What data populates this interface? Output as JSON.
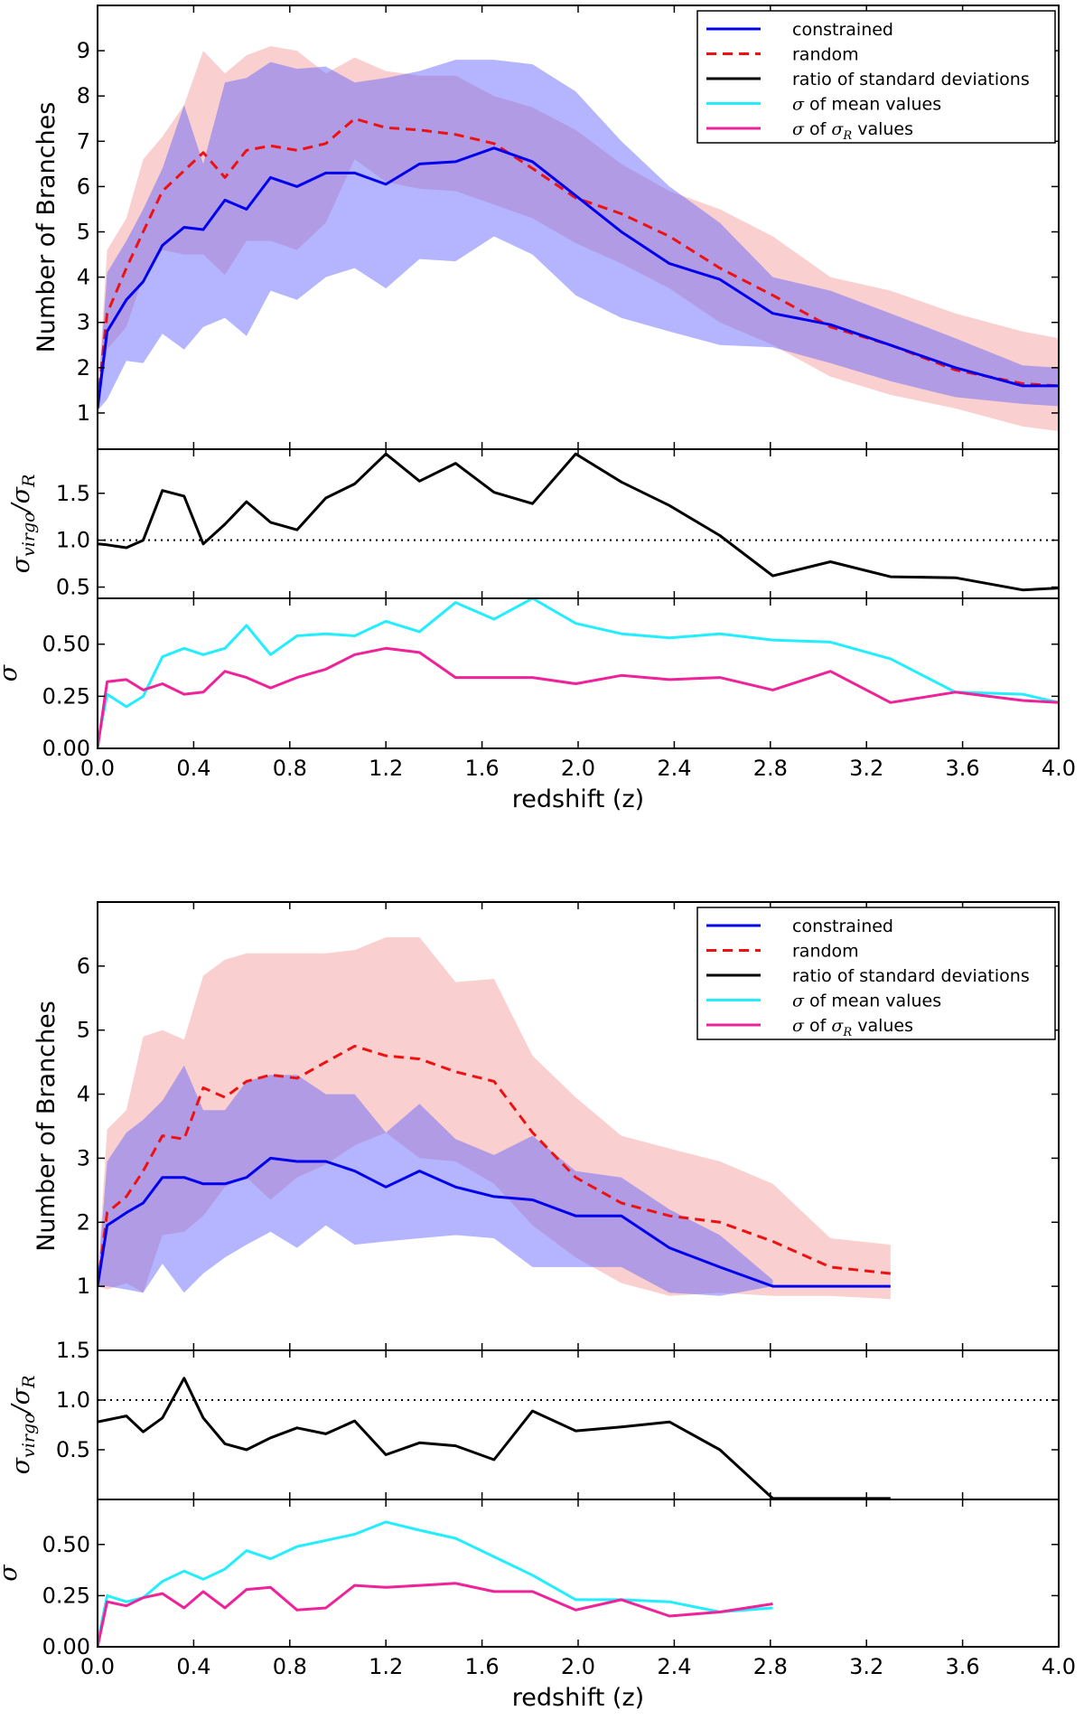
{
  "chart_data": [
    {
      "type": "line",
      "title": "",
      "xlabel": "redshift (z)",
      "ylabel": "Number of Branches",
      "xlim": [
        0.0,
        4.0
      ],
      "ylim": [
        0.2,
        10.0
      ],
      "xticks": [
        "0.0",
        "0.4",
        "0.8",
        "1.2",
        "1.6",
        "2.0",
        "2.4",
        "2.8",
        "3.2",
        "3.6",
        "4.0"
      ],
      "yticks": [
        "1",
        "2",
        "3",
        "4",
        "5",
        "6",
        "7",
        "8",
        "9"
      ],
      "legend": [
        "constrained",
        "random",
        "ratio of standard deviations",
        "σ of mean values",
        "σ of σR values"
      ],
      "legend_position": "top-right",
      "x": [
        0.0,
        0.04,
        0.12,
        0.19,
        0.27,
        0.36,
        0.44,
        0.53,
        0.62,
        0.72,
        0.83,
        0.95,
        1.07,
        1.2,
        1.34,
        1.49,
        1.65,
        1.81,
        1.99,
        2.18,
        2.38,
        2.59,
        2.81,
        3.05,
        3.3,
        3.57,
        3.85,
        4.0
      ],
      "series": [
        {
          "name": "constrained",
          "color": "#0000ee",
          "style": "solid",
          "values": [
            1.1,
            2.8,
            3.5,
            3.9,
            4.7,
            5.1,
            5.05,
            5.7,
            5.5,
            6.2,
            6.0,
            6.3,
            6.3,
            6.05,
            6.5,
            6.55,
            6.85,
            6.55,
            5.8,
            5.0,
            4.3,
            3.95,
            3.2,
            2.95,
            2.5,
            2.0,
            1.6,
            1.6
          ],
          "band_lower": [
            1.05,
            1.3,
            2.15,
            2.1,
            2.75,
            2.4,
            2.9,
            3.1,
            2.7,
            3.7,
            3.5,
            4.0,
            4.2,
            3.75,
            4.4,
            4.35,
            4.9,
            4.5,
            3.6,
            3.1,
            2.8,
            2.5,
            2.45,
            2.1,
            1.7,
            1.35,
            1.2,
            1.15
          ],
          "band_upper": [
            1.2,
            4.1,
            4.8,
            5.5,
            6.4,
            7.8,
            6.5,
            8.3,
            8.4,
            8.75,
            8.6,
            8.65,
            8.3,
            8.4,
            8.55,
            8.8,
            8.8,
            8.7,
            8.1,
            7.0,
            6.0,
            5.2,
            4.0,
            3.7,
            3.2,
            2.65,
            2.05,
            2.0
          ]
        },
        {
          "name": "random",
          "color": "#ee1111",
          "style": "dashed",
          "values": [
            1.2,
            3.2,
            4.2,
            5.0,
            5.9,
            6.35,
            6.75,
            6.2,
            6.8,
            6.9,
            6.8,
            6.95,
            7.5,
            7.3,
            7.25,
            7.15,
            6.95,
            6.4,
            5.75,
            5.4,
            4.9,
            4.2,
            3.6,
            2.9,
            2.5,
            1.95,
            1.65,
            1.6
          ],
          "band_lower": [
            1.1,
            2.4,
            2.9,
            4.0,
            4.6,
            4.5,
            4.5,
            4.05,
            4.8,
            4.8,
            4.6,
            5.2,
            6.6,
            6.1,
            5.95,
            5.9,
            5.6,
            5.3,
            4.75,
            4.3,
            3.75,
            3.0,
            2.5,
            1.8,
            1.4,
            1.1,
            0.7,
            0.6
          ],
          "band_upper": [
            1.3,
            4.6,
            5.3,
            6.6,
            7.1,
            7.8,
            9.0,
            8.5,
            8.9,
            9.1,
            9.0,
            8.5,
            8.85,
            8.55,
            8.45,
            8.45,
            8.0,
            7.75,
            7.25,
            6.5,
            5.9,
            5.5,
            4.9,
            4.0,
            3.7,
            3.2,
            2.8,
            2.65
          ]
        }
      ]
    },
    {
      "type": "line",
      "xlabel": "",
      "ylabel": "σvirgo/σR",
      "xlim": [
        0.0,
        4.0
      ],
      "ylim": [
        0.38,
        1.97
      ],
      "yticks": [
        "0.5",
        "1.0",
        "1.5"
      ],
      "reference_line": 1.0,
      "x": [
        0.0,
        0.04,
        0.12,
        0.19,
        0.27,
        0.36,
        0.44,
        0.53,
        0.62,
        0.72,
        0.83,
        0.95,
        1.07,
        1.2,
        1.34,
        1.49,
        1.65,
        1.81,
        1.99,
        2.18,
        2.38,
        2.59,
        2.81,
        3.05,
        3.3,
        3.57,
        3.85,
        4.0
      ],
      "series": [
        {
          "name": "ratio of standard deviations",
          "color": "#000000",
          "values": [
            0.96,
            0.95,
            0.92,
            1.0,
            1.53,
            1.47,
            0.96,
            1.17,
            1.41,
            1.19,
            1.11,
            1.45,
            1.6,
            1.92,
            1.63,
            1.82,
            1.51,
            1.39,
            1.92,
            1.62,
            1.37,
            1.05,
            0.62,
            0.77,
            0.61,
            0.6,
            0.47,
            0.49
          ]
        }
      ]
    },
    {
      "type": "line",
      "xlabel": "redshift (z)",
      "ylabel": "σ",
      "xlim": [
        0.0,
        4.0
      ],
      "ylim": [
        0.0,
        0.72
      ],
      "yticks": [
        "0.00",
        "0.25",
        "0.50"
      ],
      "x": [
        0.0,
        0.04,
        0.12,
        0.19,
        0.27,
        0.36,
        0.44,
        0.53,
        0.62,
        0.72,
        0.83,
        0.95,
        1.07,
        1.2,
        1.34,
        1.49,
        1.65,
        1.81,
        1.99,
        2.18,
        2.38,
        2.59,
        2.81,
        3.05,
        3.3,
        3.57,
        3.85,
        4.0
      ],
      "series": [
        {
          "name": "σ of mean values",
          "color": "#22eeff",
          "values": [
            0.02,
            0.26,
            0.2,
            0.25,
            0.44,
            0.48,
            0.45,
            0.48,
            0.59,
            0.45,
            0.54,
            0.55,
            0.54,
            0.61,
            0.56,
            0.7,
            0.62,
            0.72,
            0.6,
            0.55,
            0.53,
            0.55,
            0.52,
            0.51,
            0.43,
            0.27,
            0.26,
            0.22
          ]
        },
        {
          "name": "σ of σR values",
          "color": "#ee2299",
          "values": [
            0.0,
            0.32,
            0.33,
            0.28,
            0.31,
            0.26,
            0.27,
            0.37,
            0.34,
            0.29,
            0.34,
            0.38,
            0.45,
            0.48,
            0.46,
            0.34,
            0.34,
            0.34,
            0.31,
            0.35,
            0.33,
            0.34,
            0.28,
            0.37,
            0.22,
            0.27,
            0.23,
            0.22
          ]
        }
      ]
    },
    {
      "type": "line",
      "title": "",
      "xlabel": "redshift (z)",
      "ylabel": "Number of Branches",
      "xlim": [
        0.0,
        4.0
      ],
      "ylim": [
        0.0,
        7.0
      ],
      "yticks": [
        "1",
        "2",
        "3",
        "4",
        "5",
        "6"
      ],
      "legend": [
        "constrained",
        "random",
        "ratio of standard deviations",
        "σ of mean values",
        "σ of σR values"
      ],
      "legend_position": "top-right",
      "x": [
        0.0,
        0.04,
        0.12,
        0.19,
        0.27,
        0.36,
        0.44,
        0.53,
        0.62,
        0.72,
        0.83,
        0.95,
        1.07,
        1.2,
        1.34,
        1.49,
        1.65,
        1.81,
        1.99,
        2.18,
        2.38,
        2.59,
        2.81,
        3.05,
        3.3
      ],
      "series": [
        {
          "name": "constrained",
          "color": "#0000ee",
          "style": "solid",
          "values": [
            1.0,
            1.95,
            2.15,
            2.3,
            2.7,
            2.7,
            2.6,
            2.6,
            2.7,
            3.0,
            2.95,
            2.95,
            2.8,
            2.55,
            2.8,
            2.55,
            2.4,
            2.35,
            2.1,
            2.1,
            1.6,
            1.3,
            1.0,
            1.0,
            1.0
          ],
          "band_lower": [
            1.0,
            1.0,
            0.95,
            0.9,
            1.35,
            0.9,
            1.2,
            1.45,
            1.65,
            1.85,
            1.6,
            1.95,
            1.65,
            1.7,
            1.75,
            1.8,
            1.75,
            1.3,
            1.3,
            1.3,
            0.9,
            0.85,
            1.0,
            null,
            null
          ],
          "band_upper": [
            1.1,
            2.95,
            3.4,
            3.6,
            3.9,
            4.45,
            3.75,
            3.75,
            4.2,
            4.3,
            4.3,
            4.0,
            4.0,
            3.4,
            3.85,
            3.3,
            3.05,
            3.35,
            2.8,
            2.7,
            2.2,
            1.8,
            1.1,
            null,
            null
          ]
        },
        {
          "name": "random",
          "color": "#ee1111",
          "style": "dashed",
          "values": [
            1.0,
            2.15,
            2.4,
            2.8,
            3.35,
            3.3,
            4.1,
            3.95,
            4.2,
            4.3,
            4.25,
            4.5,
            4.75,
            4.6,
            4.55,
            4.35,
            4.2,
            3.4,
            2.7,
            2.3,
            2.1,
            2.0,
            1.7,
            1.3,
            1.2
          ],
          "band_lower": [
            1.0,
            0.95,
            1.05,
            0.9,
            1.8,
            1.85,
            2.1,
            2.55,
            2.7,
            2.35,
            2.7,
            2.9,
            3.2,
            3.4,
            3.0,
            2.95,
            2.6,
            1.95,
            1.45,
            1.05,
            0.85,
            0.9,
            0.85,
            0.85,
            0.8
          ],
          "band_upper": [
            1.1,
            3.45,
            3.75,
            4.9,
            5.0,
            4.85,
            5.85,
            6.1,
            6.2,
            6.2,
            6.2,
            6.2,
            6.25,
            6.45,
            6.45,
            5.75,
            5.8,
            4.6,
            3.95,
            3.35,
            3.15,
            2.95,
            2.6,
            1.75,
            1.65
          ]
        }
      ]
    },
    {
      "type": "line",
      "xlabel": "",
      "ylabel": "σvirgo/σR",
      "xlim": [
        0.0,
        4.0
      ],
      "ylim": [
        0.0,
        1.5
      ],
      "yticks": [
        "0.5",
        "1.0",
        "1.5"
      ],
      "reference_line": 1.0,
      "x": [
        0.0,
        0.04,
        0.12,
        0.19,
        0.27,
        0.36,
        0.44,
        0.53,
        0.62,
        0.72,
        0.83,
        0.95,
        1.07,
        1.2,
        1.34,
        1.49,
        1.65,
        1.81,
        1.99,
        2.18,
        2.38,
        2.59,
        2.81,
        3.05,
        3.3
      ],
      "series": [
        {
          "name": "ratio of standard deviations",
          "color": "#000000",
          "values": [
            0.78,
            0.8,
            0.84,
            0.68,
            0.82,
            1.22,
            0.82,
            0.56,
            0.5,
            0.62,
            0.72,
            0.66,
            0.79,
            0.45,
            0.57,
            0.54,
            0.4,
            0.89,
            0.69,
            0.73,
            0.78,
            0.5,
            0.01,
            0.01,
            0.01
          ]
        }
      ]
    },
    {
      "type": "line",
      "xlabel": "redshift (z)",
      "ylabel": "σ",
      "xlim": [
        0.0,
        4.0
      ],
      "ylim": [
        0.0,
        0.72
      ],
      "yticks": [
        "0.00",
        "0.25",
        "0.50"
      ],
      "x": [
        0.0,
        0.04,
        0.12,
        0.19,
        0.27,
        0.36,
        0.44,
        0.53,
        0.62,
        0.72,
        0.83,
        0.95,
        1.07,
        1.2,
        1.34,
        1.49,
        1.65,
        1.81,
        1.99,
        2.18,
        2.38,
        2.59,
        2.81
      ],
      "series": [
        {
          "name": "σ of mean values",
          "color": "#22eeff",
          "values": [
            0.02,
            0.25,
            0.22,
            0.24,
            0.32,
            0.37,
            0.33,
            0.38,
            0.47,
            0.43,
            0.49,
            0.52,
            0.55,
            0.61,
            0.57,
            0.53,
            0.44,
            0.35,
            0.23,
            0.23,
            0.22,
            0.17,
            0.19
          ]
        },
        {
          "name": "σ of σR values",
          "color": "#ee2299",
          "values": [
            0.0,
            0.22,
            0.2,
            0.24,
            0.26,
            0.19,
            0.27,
            0.19,
            0.28,
            0.29,
            0.18,
            0.19,
            0.3,
            0.29,
            0.3,
            0.31,
            0.27,
            0.27,
            0.18,
            0.23,
            0.15,
            0.17,
            0.21
          ]
        }
      ]
    }
  ]
}
